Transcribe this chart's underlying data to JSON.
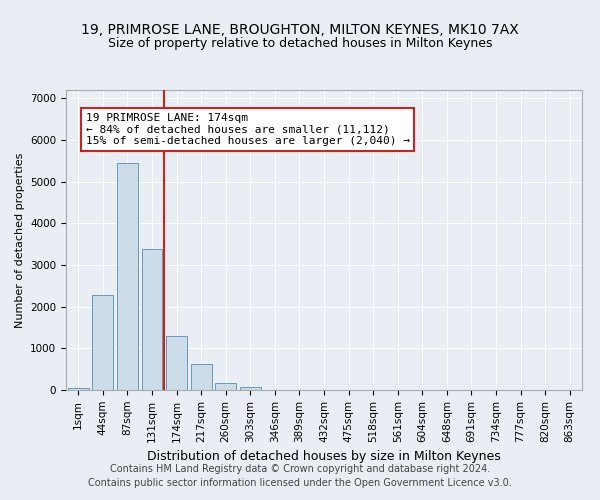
{
  "title_line1": "19, PRIMROSE LANE, BROUGHTON, MILTON KEYNES, MK10 7AX",
  "title_line2": "Size of property relative to detached houses in Milton Keynes",
  "xlabel": "Distribution of detached houses by size in Milton Keynes",
  "ylabel": "Number of detached properties",
  "footer_line1": "Contains HM Land Registry data © Crown copyright and database right 2024.",
  "footer_line2": "Contains public sector information licensed under the Open Government Licence v3.0.",
  "categories": [
    "1sqm",
    "44sqm",
    "87sqm",
    "131sqm",
    "174sqm",
    "217sqm",
    "260sqm",
    "303sqm",
    "346sqm",
    "389sqm",
    "432sqm",
    "475sqm",
    "518sqm",
    "561sqm",
    "604sqm",
    "648sqm",
    "691sqm",
    "734sqm",
    "777sqm",
    "820sqm",
    "863sqm"
  ],
  "bar_values": [
    50,
    2270,
    5450,
    3380,
    1300,
    620,
    160,
    80,
    10,
    0,
    0,
    0,
    0,
    0,
    0,
    0,
    0,
    0,
    0,
    0,
    0
  ],
  "bar_color": "#ccdce8",
  "bar_edge_color": "#6699bb",
  "vline_color": "#cc2222",
  "vline_x_index": 4,
  "annotation_text": "19 PRIMROSE LANE: 174sqm\n← 84% of detached houses are smaller (11,112)\n15% of semi-detached houses are larger (2,040) →",
  "annotation_box_color": "#ffffff",
  "annotation_box_edge": "#cc2222",
  "ylim": [
    0,
    7200
  ],
  "yticks": [
    0,
    1000,
    2000,
    3000,
    4000,
    5000,
    6000,
    7000
  ],
  "background_color": "#e8eef4",
  "grid_color": "#ffffff",
  "title1_fontsize": 10,
  "title2_fontsize": 9,
  "xlabel_fontsize": 9,
  "ylabel_fontsize": 8,
  "tick_fontsize": 7.5,
  "footer_fontsize": 7,
  "annotation_fontsize": 8
}
